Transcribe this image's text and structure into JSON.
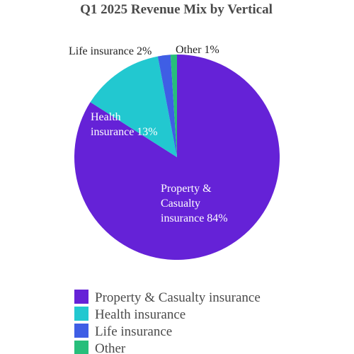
{
  "chart_data": {
    "type": "pie",
    "title": "Q1 2025 Revenue Mix by Vertical",
    "slices": [
      {
        "name": "Property & Casualty insurance",
        "value": 84,
        "color": "#6522d7",
        "label_lines": [
          "Property &",
          "Casualty",
          "insurance 84%"
        ]
      },
      {
        "name": "Health insurance",
        "value": 13,
        "color": "#22c8d0",
        "label_lines": [
          "Health",
          "insurance 13%"
        ]
      },
      {
        "name": "Life insurance",
        "value": 2,
        "color": "#3f5ee5",
        "label_lines": [
          "Life insurance 2%"
        ]
      },
      {
        "name": "Other",
        "value": 1,
        "color": "#27be7b",
        "label_lines": [
          "Other 1%"
        ]
      }
    ],
    "legend_position": "bottom-left"
  }
}
